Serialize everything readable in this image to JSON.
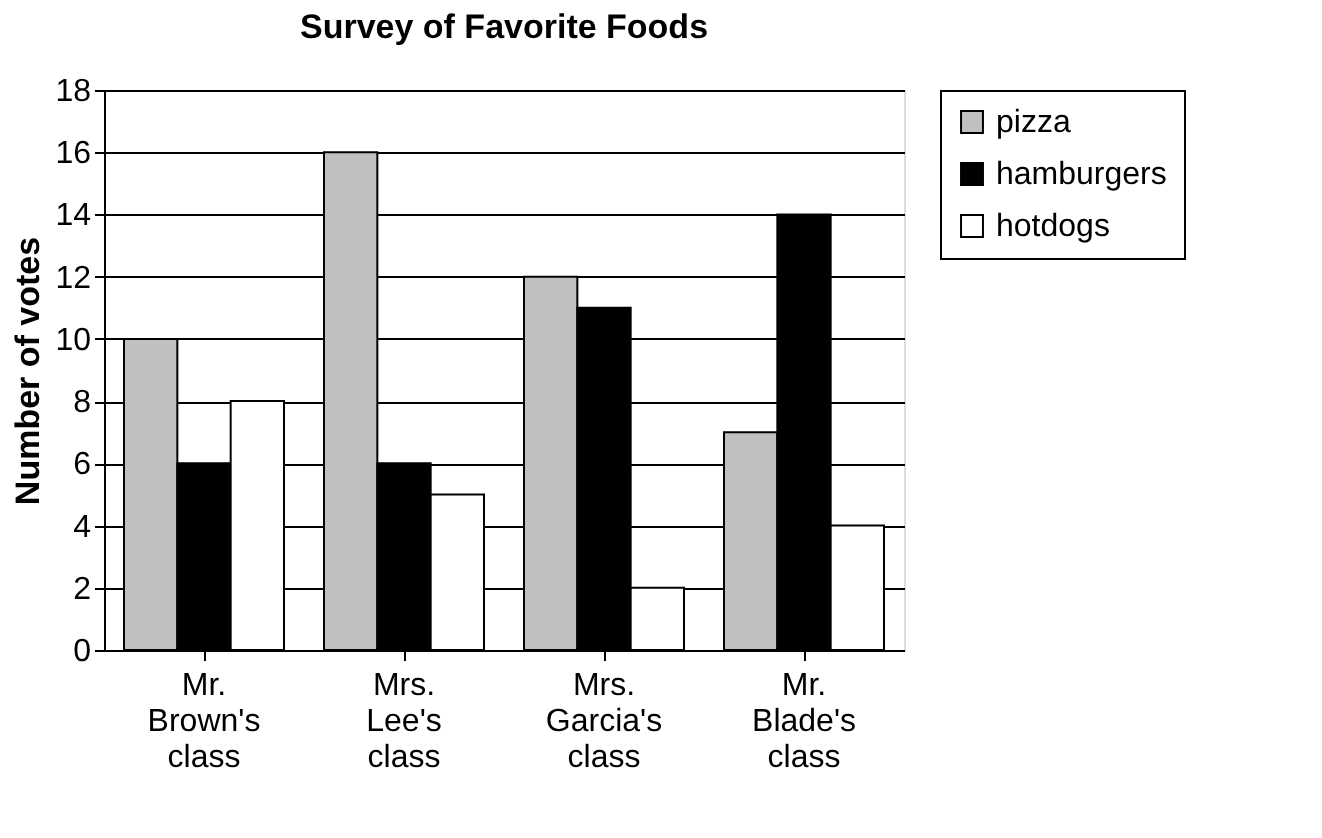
{
  "chart_data": {
    "type": "bar",
    "title": "Survey of Favorite Foods",
    "ylabel": "Number of votes",
    "categories": [
      "Mr. Brown's class",
      "Mrs. Lee's class",
      "Mrs. Garcia's class",
      "Mr. Blade's class"
    ],
    "series": [
      {
        "name": "pizza",
        "color": "#c0c0c0",
        "values": [
          10,
          16,
          12,
          7
        ]
      },
      {
        "name": "hamburgers",
        "color": "#000000",
        "values": [
          6,
          6,
          11,
          14
        ]
      },
      {
        "name": "hotdogs",
        "color": "#ffffff",
        "values": [
          8,
          5,
          2,
          4
        ]
      }
    ],
    "ylim": [
      0,
      18
    ],
    "yticks": [
      0,
      2,
      4,
      6,
      8,
      10,
      12,
      14,
      16,
      18
    ],
    "grid": "y",
    "legend": "right"
  }
}
